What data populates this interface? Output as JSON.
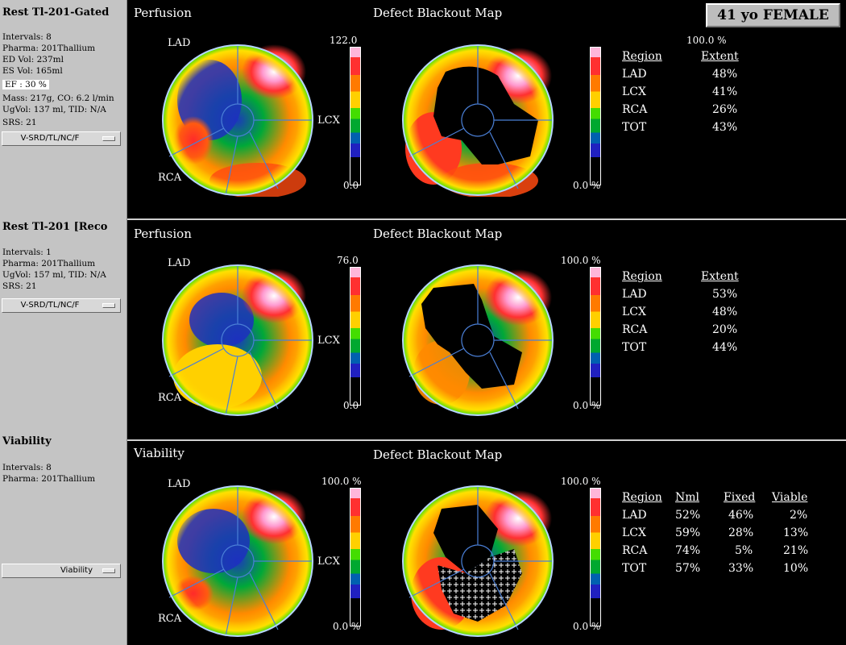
{
  "panels": [
    {
      "sidebar": {
        "title": "Rest Tl-201-Gated",
        "lines": [
          "Intervals: 8",
          "Pharma: 201Thallium",
          "ED Vol:  237ml",
          "ES Vol:  165ml",
          "EF  : 30 %",
          "Mass: 217g, CO: 6.2 l/min",
          "UgVol:  137 ml,  TID: N/A",
          "SRS: 21"
        ],
        "dropdown": "V-SRD/TL/NC/F"
      },
      "perfusion_title": "Perfusion",
      "defect_title": "Defect Blackout Map",
      "labels": {
        "lad": "LAD",
        "lcx": "LCX",
        "rca": "RCA"
      },
      "scale1": {
        "max": "122.0",
        "min": "0.0"
      },
      "scale2": {
        "max": "100.0 %",
        "min": "0.0 %"
      },
      "table": {
        "headers": [
          "Region",
          "Extent"
        ],
        "rows": [
          [
            "LAD",
            "48%"
          ],
          [
            "LCX",
            "41%"
          ],
          [
            "RCA",
            "26%"
          ],
          [
            "TOT",
            "43%"
          ]
        ]
      }
    },
    {
      "sidebar": {
        "title": "Rest Tl-201 [Reco",
        "lines": [
          "Intervals: 1",
          "Pharma: 201Thallium",
          "UgVol:  157 ml,  TID: N/A",
          "SRS: 21"
        ],
        "dropdown": "V-SRD/TL/NC/F"
      },
      "perfusion_title": "Perfusion",
      "defect_title": "Defect Blackout Map",
      "labels": {
        "lad": "LAD",
        "lcx": "LCX",
        "rca": "RCA"
      },
      "scale1": {
        "max": "76.0",
        "min": "0.0"
      },
      "scale2": {
        "max": "100.0 %",
        "min": "0.0 %"
      },
      "table": {
        "headers": [
          "Region",
          "Extent"
        ],
        "rows": [
          [
            "LAD",
            "53%"
          ],
          [
            "LCX",
            "48%"
          ],
          [
            "RCA",
            "20%"
          ],
          [
            "TOT",
            "44%"
          ]
        ]
      }
    },
    {
      "sidebar": {
        "title": "Viability",
        "lines": [
          "Intervals: 8",
          "Pharma: 201Thallium"
        ],
        "dropdown": "Viability"
      },
      "perfusion_title": "Viability",
      "defect_title": "Defect Blackout Map",
      "labels": {
        "lad": "LAD",
        "lcx": "LCX",
        "rca": "RCA"
      },
      "scale1": {
        "max": "100.0 %",
        "min": "0.0 %"
      },
      "scale2": {
        "max": "100.0 %",
        "min": "0.0 %"
      },
      "table": {
        "headers": [
          "Region",
          "Nml",
          "Fixed",
          "Viable"
        ],
        "rows": [
          [
            "LAD",
            "52%",
            "46%",
            "2%"
          ],
          [
            "LCX",
            "59%",
            "28%",
            "13%"
          ],
          [
            "RCA",
            "74%",
            "5%",
            "21%"
          ],
          [
            "TOT",
            "57%",
            "33%",
            "10%"
          ]
        ]
      }
    }
  ],
  "patient_label": "41 yo FEMALE"
}
